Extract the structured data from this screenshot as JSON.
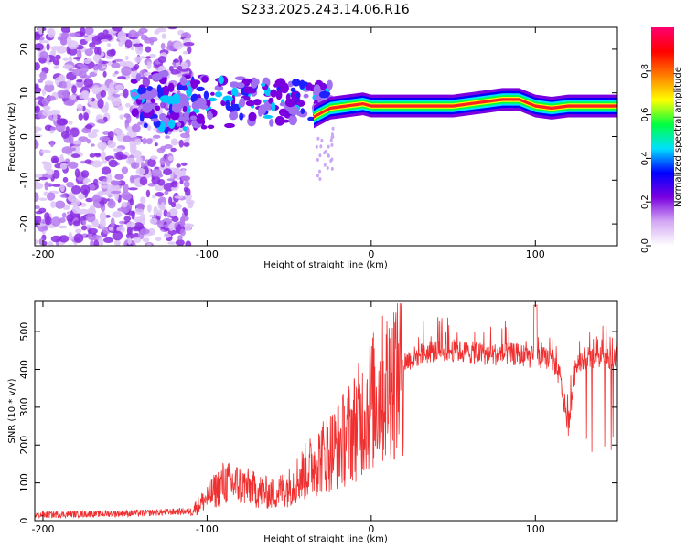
{
  "title": "S233.2025.243.14.06.R16",
  "chart_data": [
    {
      "type": "heatmap",
      "xlabel": "Height of straight line (km)",
      "ylabel": "Frequency (Hz)",
      "xlim": [
        -205,
        150
      ],
      "ylim": [
        -25,
        25
      ],
      "xticks": [
        -200,
        -100,
        0,
        100
      ],
      "yticks": [
        -20,
        -10,
        0,
        10,
        20
      ],
      "colorbar": {
        "label": "Normalized spectral amplitude",
        "ticks": [
          "0.0",
          "0.2",
          "0.4",
          "0.6",
          "0.8"
        ],
        "range": [
          0,
          1
        ],
        "colors": [
          "#ffffff",
          "#d4a7f4",
          "#7a00e0",
          "#0000ff",
          "#00e0ff",
          "#00ff40",
          "#ffff00",
          "#ff7f00",
          "#ff0000",
          "#ff0070"
        ]
      },
      "carrier_ridge": {
        "x": [
          -35,
          -25,
          -15,
          -5,
          0,
          10,
          20,
          30,
          40,
          50,
          60,
          70,
          80,
          90,
          100,
          110,
          120,
          130,
          140,
          150
        ],
        "freq": [
          4.5,
          6.5,
          7,
          7.5,
          7,
          7,
          7,
          7,
          7,
          7,
          7.5,
          8,
          8.5,
          8.5,
          7,
          6.5,
          7,
          7,
          7,
          7
        ]
      }
    },
    {
      "type": "line",
      "xlabel": "Height of straight line (km)",
      "ylabel": "SNR (10 * v/v)",
      "xlim": [
        -205,
        150
      ],
      "ylim": [
        0,
        580
      ],
      "xticks": [
        -200,
        -100,
        0,
        100
      ],
      "yticks": [
        0,
        100,
        200,
        300,
        400,
        500
      ],
      "series": [
        {
          "name": "SNR",
          "color": "#f03030",
          "envelope_x": [
            -205,
            -140,
            -110,
            -100,
            -90,
            -80,
            -70,
            -60,
            -50,
            -40,
            -30,
            -20,
            -10,
            0,
            10,
            20,
            30,
            40,
            50,
            60,
            70,
            80,
            90,
            100,
            110,
            115,
            120,
            125,
            130,
            140,
            150
          ],
          "envelope_y": [
            15,
            20,
            25,
            60,
            100,
            95,
            80,
            70,
            90,
            130,
            170,
            200,
            250,
            310,
            360,
            420,
            440,
            450,
            450,
            445,
            440,
            440,
            440,
            430,
            430,
            380,
            250,
            420,
            430,
            430,
            430
          ]
        }
      ]
    }
  ]
}
